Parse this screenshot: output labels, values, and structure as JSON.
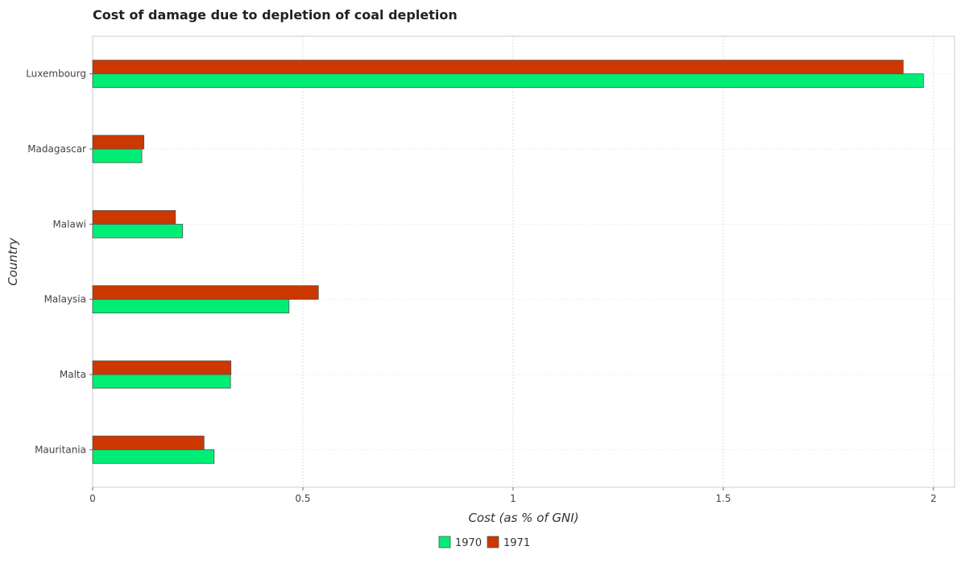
{
  "chart_data": {
    "type": "bar",
    "orientation": "horizontal",
    "title": "Cost of damage due to depletion of coal depletion",
    "xlabel": "Cost (as % of GNI)",
    "ylabel": "Country",
    "categories": [
      "Luxembourg",
      "Madagascar",
      "Malawi",
      "Malaysia",
      "Malta",
      "Mauritania"
    ],
    "series": [
      {
        "name": "1970",
        "color": "#00ee76",
        "values": [
          1.976,
          0.117,
          0.214,
          0.467,
          0.328,
          0.289
        ]
      },
      {
        "name": "1971",
        "color": "#cd3700",
        "values": [
          1.928,
          0.122,
          0.197,
          0.537,
          0.329,
          0.265
        ]
      }
    ],
    "xlim": [
      0,
      2.05
    ],
    "xticks": [
      0,
      0.5,
      1,
      1.5,
      2
    ],
    "xtick_labels": [
      "0",
      "0.5",
      "1",
      "1.5",
      "2"
    ],
    "grid": true,
    "legend_position": "bottom-center"
  }
}
